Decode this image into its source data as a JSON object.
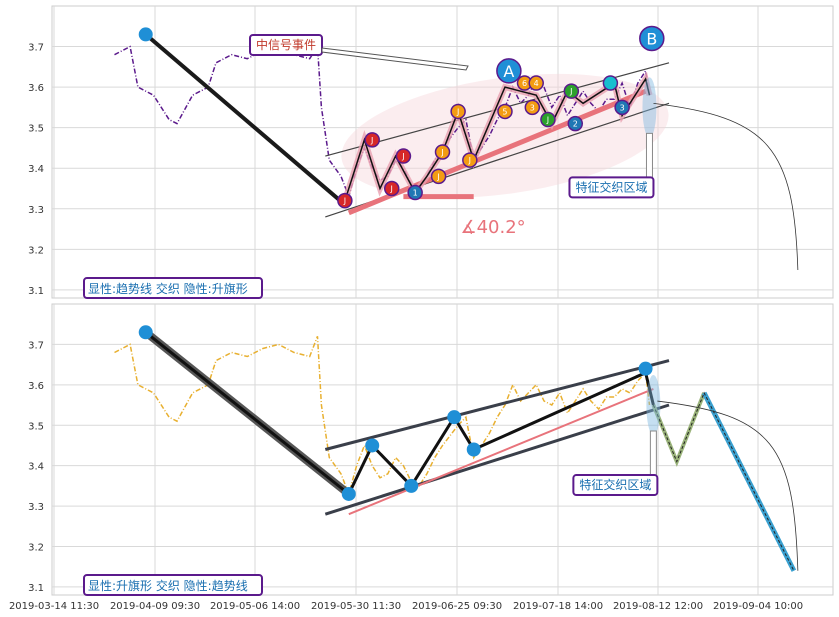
{
  "chart_data": [
    {
      "type": "line",
      "panel": "top",
      "ylim": [
        3.08,
        3.8
      ],
      "yticks": [
        "3.1",
        "3.2",
        "3.3",
        "3.4",
        "3.5",
        "3.6",
        "3.7"
      ],
      "grid": true,
      "legend": "显性:趋势线 交织 隐性:升旗形",
      "event_label": "中信号事件",
      "zone_label": "特征交织区域",
      "angle_label": "∡40.2°",
      "marker_A": "A",
      "marker_B": "B",
      "price_path": [
        [
          0.08,
          3.68
        ],
        [
          0.1,
          3.7
        ],
        [
          0.11,
          3.6
        ],
        [
          0.13,
          3.58
        ],
        [
          0.15,
          3.52
        ],
        [
          0.16,
          3.51
        ],
        [
          0.18,
          3.58
        ],
        [
          0.2,
          3.6
        ],
        [
          0.21,
          3.66
        ],
        [
          0.23,
          3.68
        ],
        [
          0.25,
          3.67
        ],
        [
          0.27,
          3.69
        ],
        [
          0.29,
          3.7
        ],
        [
          0.31,
          3.68
        ],
        [
          0.33,
          3.67
        ],
        [
          0.34,
          3.7
        ],
        [
          0.345,
          3.55
        ],
        [
          0.355,
          3.42
        ],
        [
          0.37,
          3.38
        ],
        [
          0.38,
          3.33
        ],
        [
          0.39,
          3.4
        ],
        [
          0.4,
          3.45
        ],
        [
          0.41,
          3.4
        ],
        [
          0.42,
          3.37
        ],
        [
          0.43,
          3.38
        ],
        [
          0.44,
          3.42
        ],
        [
          0.45,
          3.4
        ],
        [
          0.46,
          3.36
        ],
        [
          0.47,
          3.35
        ],
        [
          0.48,
          3.38
        ],
        [
          0.49,
          3.42
        ],
        [
          0.5,
          3.45
        ],
        [
          0.52,
          3.5
        ],
        [
          0.53,
          3.52
        ],
        [
          0.54,
          3.42
        ],
        [
          0.55,
          3.45
        ],
        [
          0.56,
          3.48
        ],
        [
          0.57,
          3.52
        ],
        [
          0.58,
          3.55
        ],
        [
          0.59,
          3.6
        ],
        [
          0.6,
          3.56
        ],
        [
          0.61,
          3.58
        ],
        [
          0.62,
          3.62
        ],
        [
          0.63,
          3.6
        ],
        [
          0.64,
          3.55
        ],
        [
          0.65,
          3.58
        ],
        [
          0.66,
          3.53
        ],
        [
          0.67,
          3.56
        ],
        [
          0.68,
          3.59
        ],
        [
          0.69,
          3.56
        ],
        [
          0.7,
          3.54
        ],
        [
          0.71,
          3.57
        ],
        [
          0.72,
          3.57
        ],
        [
          0.73,
          3.61
        ],
        [
          0.74,
          3.55
        ],
        [
          0.75,
          3.61
        ],
        [
          0.76,
          3.64
        ],
        [
          0.765,
          3.58
        ]
      ],
      "zigzag_top": [
        [
          0.375,
          3.32
        ],
        [
          0.4,
          3.47
        ],
        [
          0.42,
          3.35
        ],
        [
          0.44,
          3.43
        ],
        [
          0.465,
          3.34
        ],
        [
          0.48,
          3.38
        ],
        [
          0.5,
          3.44
        ],
        [
          0.52,
          3.54
        ],
        [
          0.54,
          3.42
        ],
        [
          0.58,
          3.6
        ],
        [
          0.6,
          3.59
        ],
        [
          0.62,
          3.58
        ],
        [
          0.64,
          3.51
        ],
        [
          0.66,
          3.59
        ],
        [
          0.68,
          3.56
        ],
        [
          0.72,
          3.61
        ],
        [
          0.73,
          3.53
        ],
        [
          0.76,
          3.62
        ],
        [
          0.765,
          3.58
        ]
      ],
      "main_line": [
        [
          0.12,
          3.73
        ],
        [
          0.375,
          3.31
        ]
      ],
      "upper_channel": [
        [
          0.35,
          3.43
        ],
        [
          0.79,
          3.66
        ]
      ],
      "lower_channel": [
        [
          0.35,
          3.28
        ],
        [
          0.79,
          3.56
        ]
      ],
      "trend_up": [
        [
          0.38,
          3.29
        ],
        [
          0.76,
          3.59
        ]
      ],
      "trend_flat": [
        [
          0.45,
          3.33
        ],
        [
          0.54,
          3.33
        ]
      ],
      "markers": [
        {
          "x": 0.375,
          "y": 3.32,
          "c": "#d62728",
          "label": "J"
        },
        {
          "x": 0.41,
          "y": 3.47,
          "c": "#d62728",
          "label": "J"
        },
        {
          "x": 0.435,
          "y": 3.35,
          "c": "#d62728",
          "label": "J"
        },
        {
          "x": 0.45,
          "y": 3.43,
          "c": "#d62728",
          "label": "J"
        },
        {
          "x": 0.465,
          "y": 3.34,
          "c": "#1f77b4",
          "label": "1"
        },
        {
          "x": 0.495,
          "y": 3.38,
          "c": "#f39c12",
          "label": "J"
        },
        {
          "x": 0.5,
          "y": 3.44,
          "c": "#f39c12",
          "label": "J"
        },
        {
          "x": 0.52,
          "y": 3.54,
          "c": "#f39c12",
          "label": "J"
        },
        {
          "x": 0.535,
          "y": 3.42,
          "c": "#f39c12",
          "label": "J"
        },
        {
          "x": 0.58,
          "y": 3.54,
          "c": "#f39c12",
          "label": "5"
        },
        {
          "x": 0.605,
          "y": 3.61,
          "c": "#f39c12",
          "label": "6"
        },
        {
          "x": 0.62,
          "y": 3.61,
          "c": "#f39c12",
          "label": "4"
        },
        {
          "x": 0.615,
          "y": 3.55,
          "c": "#f39c12",
          "label": "3"
        },
        {
          "x": 0.635,
          "y": 3.52,
          "c": "#2ca02c",
          "label": "J"
        },
        {
          "x": 0.665,
          "y": 3.59,
          "c": "#2ca02c",
          "label": "J"
        },
        {
          "x": 0.67,
          "y": 3.51,
          "c": "#1f77b4",
          "label": "2"
        },
        {
          "x": 0.715,
          "y": 3.61,
          "c": "#17becf",
          "label": ""
        },
        {
          "x": 0.73,
          "y": 3.55,
          "c": "#1f77b4",
          "label": "3"
        }
      ]
    },
    {
      "type": "line",
      "panel": "bottom",
      "ylim": [
        3.08,
        3.8
      ],
      "yticks": [
        "3.1",
        "3.2",
        "3.3",
        "3.4",
        "3.5",
        "3.6",
        "3.7"
      ],
      "grid": true,
      "legend": "显性:升旗形 交织 隐性:趋势线",
      "zone_label": "特征交织区域",
      "xticks": [
        "2019-03-14 11:30",
        "2019-04-09 09:30",
        "2019-05-06 14:00",
        "2019-05-30 11:30",
        "2019-06-25 09:30",
        "2019-07-18 14:00",
        "2019-08-12 12:00",
        "2019-09-04 10:00"
      ],
      "price_path": [
        [
          0.08,
          3.68
        ],
        [
          0.1,
          3.7
        ],
        [
          0.11,
          3.6
        ],
        [
          0.13,
          3.58
        ],
        [
          0.15,
          3.52
        ],
        [
          0.16,
          3.51
        ],
        [
          0.18,
          3.58
        ],
        [
          0.2,
          3.6
        ],
        [
          0.21,
          3.66
        ],
        [
          0.23,
          3.68
        ],
        [
          0.25,
          3.67
        ],
        [
          0.27,
          3.69
        ],
        [
          0.29,
          3.7
        ],
        [
          0.31,
          3.68
        ],
        [
          0.33,
          3.67
        ],
        [
          0.34,
          3.72
        ],
        [
          0.345,
          3.55
        ],
        [
          0.355,
          3.42
        ],
        [
          0.37,
          3.38
        ],
        [
          0.38,
          3.33
        ],
        [
          0.39,
          3.4
        ],
        [
          0.4,
          3.45
        ],
        [
          0.41,
          3.4
        ],
        [
          0.42,
          3.37
        ],
        [
          0.43,
          3.38
        ],
        [
          0.44,
          3.42
        ],
        [
          0.45,
          3.4
        ],
        [
          0.46,
          3.36
        ],
        [
          0.47,
          3.35
        ],
        [
          0.48,
          3.38
        ],
        [
          0.49,
          3.42
        ],
        [
          0.5,
          3.45
        ],
        [
          0.52,
          3.5
        ],
        [
          0.53,
          3.52
        ],
        [
          0.54,
          3.42
        ],
        [
          0.55,
          3.45
        ],
        [
          0.56,
          3.48
        ],
        [
          0.57,
          3.52
        ],
        [
          0.58,
          3.55
        ],
        [
          0.59,
          3.6
        ],
        [
          0.6,
          3.56
        ],
        [
          0.61,
          3.58
        ],
        [
          0.62,
          3.6
        ],
        [
          0.63,
          3.56
        ],
        [
          0.64,
          3.55
        ],
        [
          0.65,
          3.58
        ],
        [
          0.66,
          3.53
        ],
        [
          0.67,
          3.56
        ],
        [
          0.68,
          3.59
        ],
        [
          0.69,
          3.56
        ],
        [
          0.7,
          3.54
        ],
        [
          0.71,
          3.57
        ],
        [
          0.72,
          3.57
        ],
        [
          0.73,
          3.59
        ],
        [
          0.74,
          3.58
        ],
        [
          0.75,
          3.61
        ],
        [
          0.76,
          3.63
        ],
        [
          0.765,
          3.55
        ]
      ],
      "main_line": [
        [
          0.12,
          3.73
        ],
        [
          0.38,
          3.33
        ]
      ],
      "zigzag": [
        [
          0.38,
          3.33
        ],
        [
          0.41,
          3.45
        ],
        [
          0.46,
          3.35
        ],
        [
          0.515,
          3.52
        ],
        [
          0.54,
          3.44
        ],
        [
          0.76,
          3.63
        ],
        [
          0.77,
          3.55
        ]
      ],
      "upper_channel": [
        [
          0.35,
          3.44
        ],
        [
          0.79,
          3.66
        ]
      ],
      "lower_channel": [
        [
          0.35,
          3.28
        ],
        [
          0.79,
          3.55
        ]
      ],
      "trend_up": [
        [
          0.38,
          3.28
        ],
        [
          0.77,
          3.59
        ]
      ],
      "forecast": [
        [
          0.77,
          3.55
        ],
        [
          0.8,
          3.41
        ],
        [
          0.835,
          3.58
        ],
        [
          0.95,
          3.14
        ]
      ],
      "markers": [
        {
          "x": 0.12,
          "y": 3.73
        },
        {
          "x": 0.38,
          "y": 3.33
        },
        {
          "x": 0.41,
          "y": 3.45
        },
        {
          "x": 0.46,
          "y": 3.35
        },
        {
          "x": 0.515,
          "y": 3.52
        },
        {
          "x": 0.54,
          "y": 3.44
        },
        {
          "x": 0.76,
          "y": 3.64
        }
      ]
    }
  ]
}
